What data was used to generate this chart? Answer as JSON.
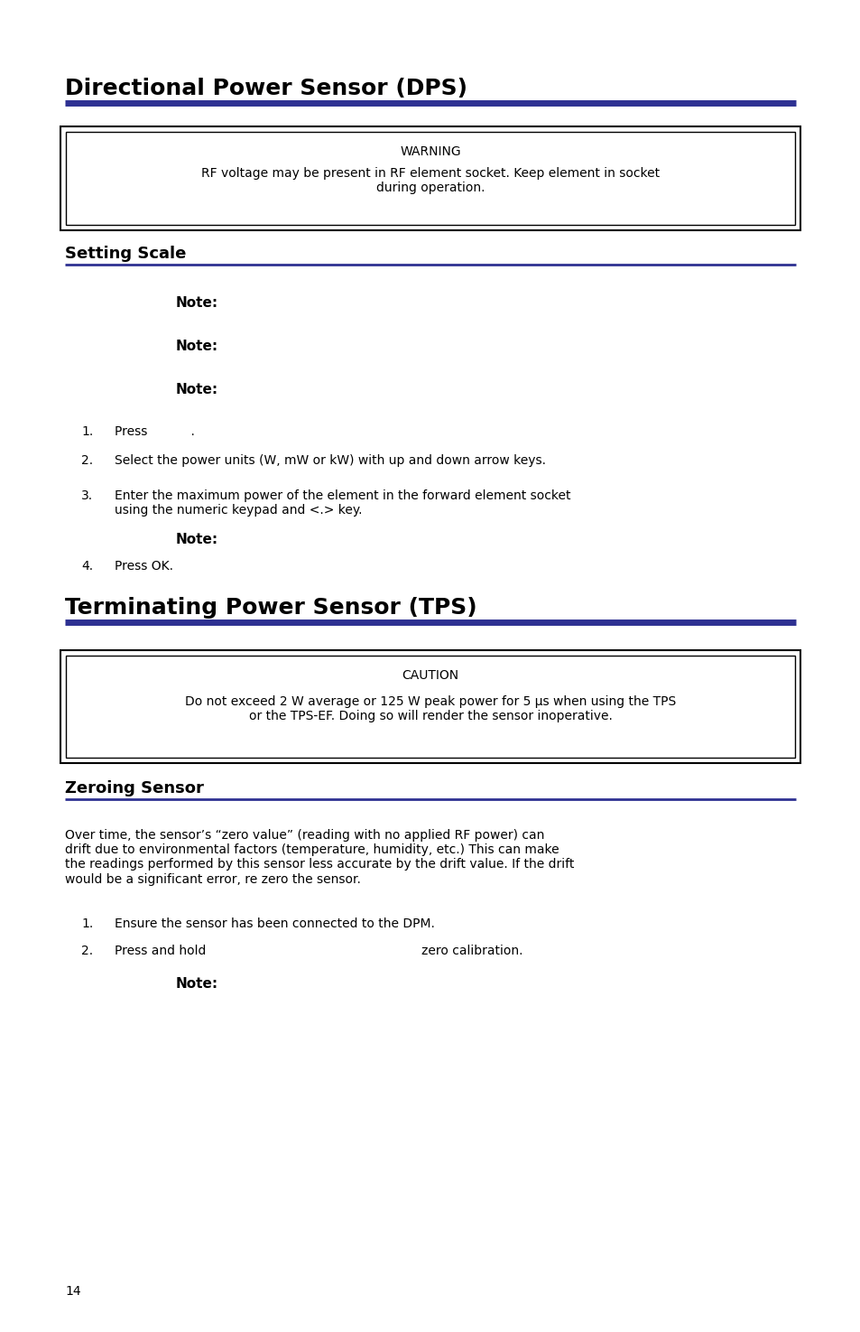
{
  "bg_color": "#ffffff",
  "blue_line_color": "#2e3192",
  "black_color": "#000000",
  "heading1": "Directional Power Sensor (DPS)",
  "warning_title": "WARNING",
  "warning_text": "RF voltage may be present in RF element socket. Keep element in socket\nduring operation.",
  "heading2": "Setting Scale",
  "heading3": "Terminating Power Sensor (TPS)",
  "caution_title": "CAUTION",
  "caution_text": "Do not exceed 2 W average or 125 W peak power for 5 μs when using the TPS\nor the TPS-EF. Doing so will render the sensor inoperative.",
  "heading4": "Zeroing Sensor",
  "zeroing_para": "Over time, the sensor’s “zero value” (reading with no applied RF power) can\ndrift due to environmental factors (temperature, humidity, etc.) This can make\nthe readings performed by this sensor less accurate by the drift value. If the drift\nwould be a significant error, re zero the sensor.",
  "zero_list1": "Ensure the sensor has been connected to the DPM.",
  "zero_list2a": "Press and hold",
  "zero_list2b": "zero calibration.",
  "page_num": "14",
  "figw": 9.54,
  "figh": 14.75,
  "dpi": 100
}
